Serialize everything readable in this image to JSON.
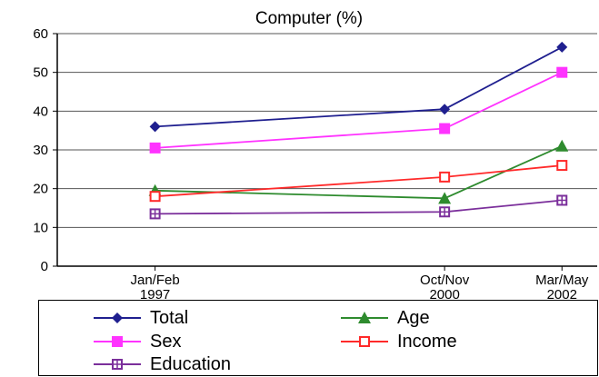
{
  "chart_data": {
    "type": "line",
    "title": "Computer  (%)",
    "xlabel": "",
    "ylabel": "",
    "ylim": [
      0,
      60
    ],
    "yticks": [
      0,
      10,
      20,
      30,
      40,
      50,
      60
    ],
    "x": [
      "Jan/Feb 1997",
      "Oct/Nov 2000",
      "Mar/May 2002"
    ],
    "x_tick_lines": [
      [
        "Jan/Feb",
        "1997"
      ],
      [
        "Oct/Nov",
        "2000"
      ],
      [
        "Mar/May",
        "2002"
      ]
    ],
    "x_positions": [
      1997.1,
      2000.8,
      2002.3
    ],
    "grid": true,
    "legend_placement": "bottom",
    "series": [
      {
        "name": "Total",
        "values": [
          36,
          40.5,
          56.5
        ],
        "color": "#1f1f8f",
        "marker": "diamond"
      },
      {
        "name": "Age",
        "values": [
          19.5,
          17.5,
          31
        ],
        "color": "#2e8b2e",
        "marker": "triangle"
      },
      {
        "name": "Sex",
        "values": [
          30.5,
          35.5,
          50
        ],
        "color": "#ff33ff",
        "marker": "square"
      },
      {
        "name": "Income",
        "values": [
          18,
          23,
          26
        ],
        "color": "#ff2a2a",
        "marker": "square-open"
      },
      {
        "name": "Education",
        "values": [
          13.5,
          14,
          17
        ],
        "color": "#7b2f9b",
        "marker": "square-cross"
      }
    ]
  }
}
